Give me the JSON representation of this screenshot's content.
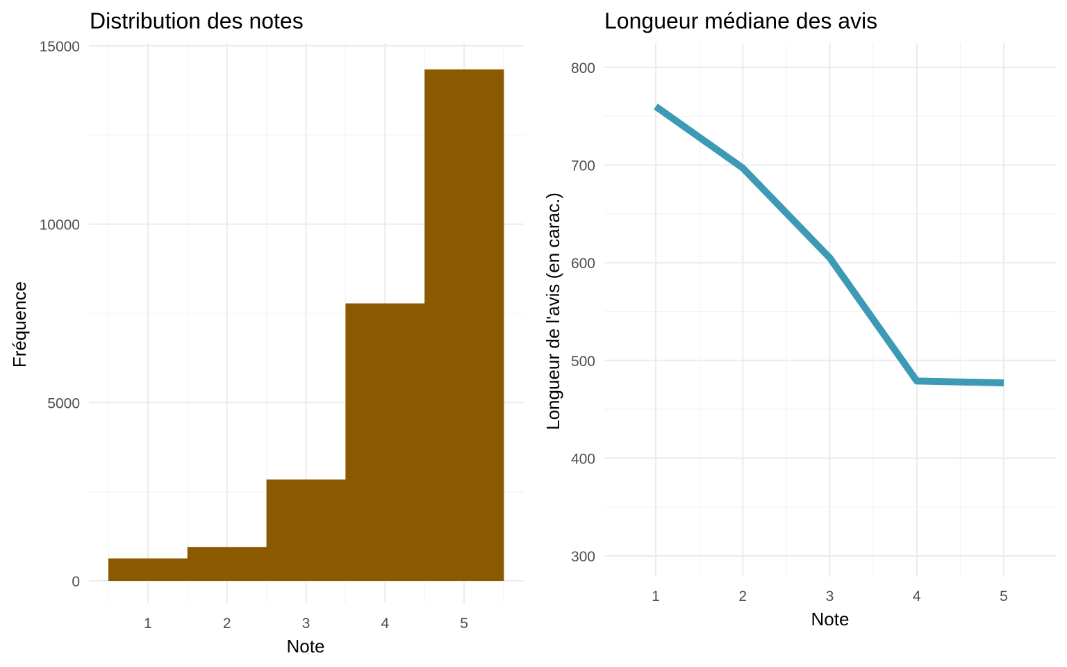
{
  "chart_data": [
    {
      "type": "bar",
      "title": "Distribution des notes",
      "xlabel": "Note",
      "ylabel": "Fréquence",
      "categories": [
        "1",
        "2",
        "3",
        "4",
        "5"
      ],
      "values": [
        630,
        950,
        2840,
        7780,
        14340
      ],
      "ylim": [
        0,
        15000
      ],
      "yticks": [
        "0",
        "5000",
        "10000",
        "15000"
      ],
      "grid": true,
      "color": "#8b5a00"
    },
    {
      "type": "line",
      "title": "Longueur médiane des avis",
      "xlabel": "Note",
      "ylabel": "Longueur de l'avis (en carac.)",
      "x": [
        1,
        2,
        3,
        4,
        5
      ],
      "xticks": [
        "1",
        "2",
        "3",
        "4",
        "5"
      ],
      "values": [
        760,
        697,
        605,
        479,
        477
      ],
      "ylim": [
        275,
        825
      ],
      "yticks": [
        "300",
        "400",
        "500",
        "600",
        "700",
        "800"
      ],
      "grid": true,
      "color": "#3d9ab5"
    }
  ]
}
